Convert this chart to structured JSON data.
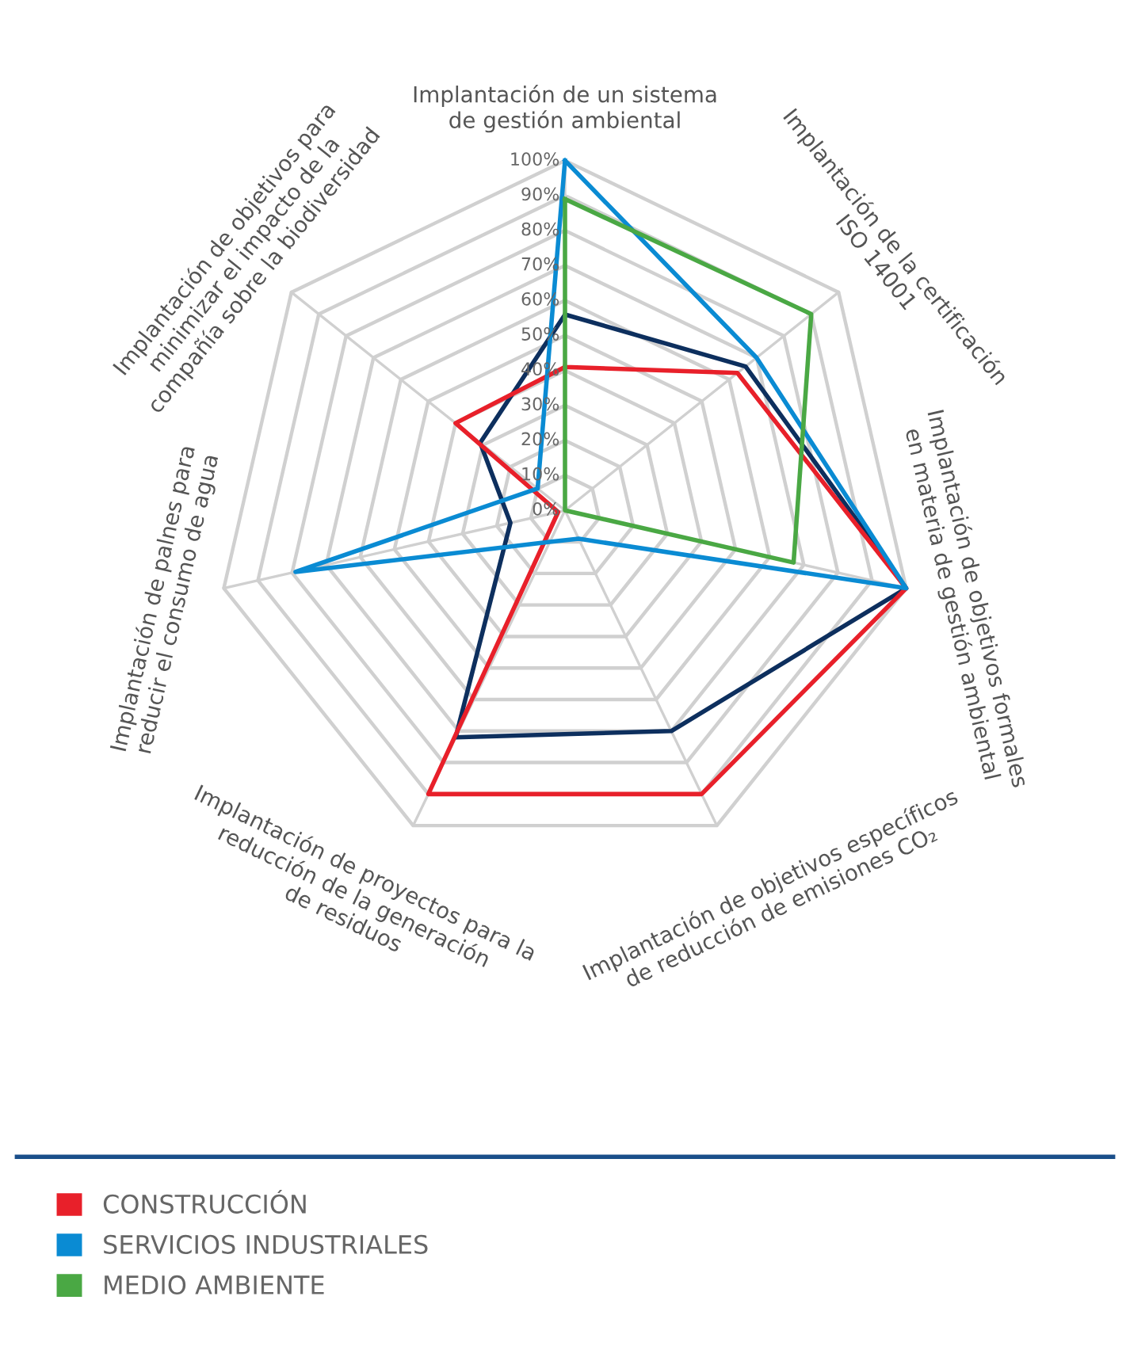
{
  "chart_data": {
    "type": "radar",
    "categories": [
      "Implantación de un sistema\nde gestión ambiental",
      "Implantación de la certificación\nISO 14001",
      "Implantación de objetivos formales\nen materia de gestión ambiental",
      "Implantación de objetivos específicos\nde reducción de emisiones CO₂",
      "Implantación de proyectos para la\nreducción de la generación\nde residuos",
      "Implantación de palnes para\nreducir el consumo de agua",
      "Implantación de objetivos para\nminimizar el impacto de la\ncompañía sobre la biodiversidad"
    ],
    "series": [
      {
        "color": "#0d2f5e",
        "values": [
          56,
          66,
          100,
          70,
          72,
          16,
          31
        ]
      },
      {
        "name": "CONSTRUCCIÓN",
        "color": "#e8202a",
        "values": [
          41,
          63,
          100,
          90,
          90,
          2,
          40
        ]
      },
      {
        "name": "SERVICIOS INDUSTRIALES",
        "color": "#0a8bd3",
        "values": [
          100,
          70,
          100,
          9,
          10,
          79,
          10
        ]
      },
      {
        "name": "MEDIO AMBIENTE",
        "color": "#4aa844",
        "values": [
          89,
          90,
          67,
          0,
          0,
          0,
          0
        ]
      }
    ],
    "ylim": [
      0,
      100
    ],
    "yticks": [
      {
        "value": 0,
        "label": "0%"
      },
      {
        "value": 10,
        "label": "10%"
      },
      {
        "value": 20,
        "label": "20%"
      },
      {
        "value": 30,
        "label": "30%"
      },
      {
        "value": 40,
        "label": "40%"
      },
      {
        "value": 50,
        "label": "50%"
      },
      {
        "value": 60,
        "label": "60%"
      },
      {
        "value": 70,
        "label": "70%"
      },
      {
        "value": 80,
        "label": "80%"
      },
      {
        "value": 90,
        "label": "90%"
      },
      {
        "value": 100,
        "label": "100%"
      }
    ],
    "grid": true,
    "legend": "bottom"
  }
}
